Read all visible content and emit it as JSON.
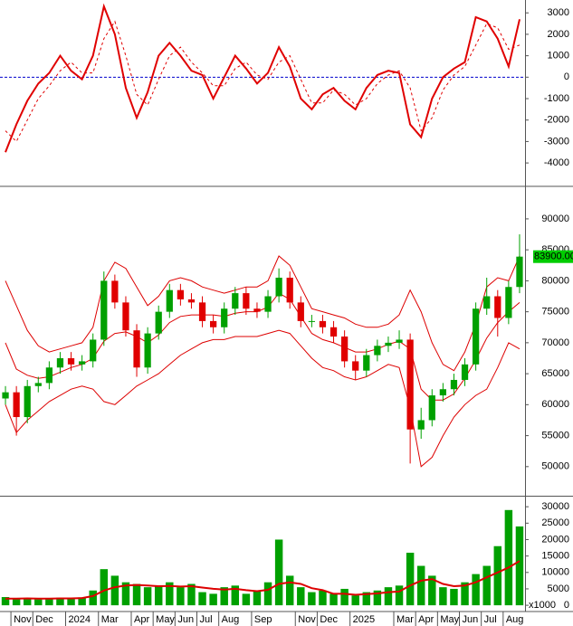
{
  "chart_data": [
    {
      "type": "line",
      "ylim": [
        -5050,
        3600
      ],
      "yticks": [
        3000,
        2000,
        1000,
        0,
        -1000,
        -2000,
        -3000,
        -4000
      ],
      "reference_line": {
        "value": 0,
        "color": "#0000cc"
      },
      "series": [
        {
          "color": "#e00000",
          "style": "solid",
          "values": [
            -3500,
            -2200,
            -1100,
            -300,
            200,
            1000,
            300,
            -100,
            1000,
            3300,
            2000,
            -500,
            -1900,
            -700,
            1000,
            1600,
            1000,
            300,
            100,
            -1000,
            0,
            1000,
            400,
            -300,
            200,
            1400,
            500,
            -1000,
            -1500,
            -800,
            -500,
            -1100,
            -1500,
            -500,
            100,
            300,
            200,
            -2200,
            -2800,
            -1000,
            0,
            400,
            700,
            2800,
            2600,
            1800,
            500,
            2700
          ]
        },
        {
          "color": "#e00000",
          "style": "dashed",
          "values": [
            -2500,
            -3000,
            -2000,
            -1000,
            -400,
            300,
            700,
            200,
            200,
            1800,
            2600,
            1000,
            -800,
            -1300,
            -100,
            1000,
            1400,
            700,
            200,
            -400,
            -400,
            400,
            700,
            100,
            -100,
            700,
            1000,
            -100,
            -1200,
            -1200,
            -600,
            -800,
            -1300,
            -1000,
            -300,
            100,
            300,
            -500,
            -2500,
            -1900,
            -600,
            100,
            500,
            1500,
            2500,
            2300,
            1300,
            1500
          ]
        }
      ]
    },
    {
      "type": "candlestick",
      "ylim": [
        45300,
        95100
      ],
      "yticks": [
        90000,
        85000,
        80000,
        75000,
        70000,
        65000,
        60000,
        55000,
        50000
      ],
      "up_color": "#00a000",
      "down_color": "#e00000",
      "open": [
        61000,
        62000,
        58000,
        63000,
        63500,
        66000,
        67500,
        66500,
        67000,
        70500,
        80000,
        76500,
        72000,
        66000,
        71500,
        75000,
        78500,
        77000,
        76500,
        73500,
        72500,
        75500,
        78000,
        75500,
        75000,
        77500,
        80500,
        76500,
        73500,
        73500,
        72500,
        71000,
        67000,
        65500,
        68000,
        69500,
        70000,
        70500,
        56000,
        57500,
        61500,
        62500,
        64000,
        66500,
        75500,
        77500,
        74000,
        79000
      ],
      "high": [
        63000,
        63000,
        64000,
        64500,
        67000,
        68500,
        68500,
        68000,
        71500,
        81500,
        81000,
        77500,
        73000,
        72500,
        76000,
        79500,
        79500,
        78000,
        77500,
        74500,
        76500,
        79000,
        79000,
        76500,
        78500,
        82000,
        81500,
        77500,
        74500,
        74500,
        73500,
        72000,
        68000,
        69000,
        70500,
        71000,
        72000,
        71500,
        59500,
        62500,
        63500,
        65000,
        67500,
        76500,
        80500,
        78500,
        80000,
        87500
      ],
      "low": [
        60000,
        55000,
        57000,
        62000,
        62500,
        65000,
        65500,
        65500,
        66000,
        69500,
        75500,
        71000,
        64500,
        65000,
        70500,
        74000,
        76000,
        75500,
        72500,
        71500,
        71500,
        74500,
        74500,
        74000,
        74000,
        76500,
        75500,
        72500,
        72500,
        71500,
        70000,
        66000,
        64000,
        64500,
        67000,
        68500,
        69000,
        50500,
        54500,
        56500,
        60500,
        61500,
        63000,
        65500,
        74500,
        71000,
        73000,
        78000
      ],
      "close": [
        62000,
        58000,
        63000,
        63500,
        66000,
        67500,
        66500,
        67000,
        70500,
        80000,
        76500,
        72000,
        66000,
        71500,
        75000,
        78500,
        77000,
        76500,
        73500,
        72500,
        75500,
        78000,
        75500,
        75000,
        77500,
        80500,
        76500,
        73500,
        73500,
        72500,
        71000,
        67000,
        65500,
        68000,
        69500,
        70000,
        70500,
        56000,
        57500,
        61500,
        62500,
        64000,
        66500,
        75500,
        77500,
        74000,
        79000,
        83900
      ],
      "series": [
        {
          "color": "#dd0000",
          "values": [
            80000,
            76000,
            72000,
            69500,
            68500,
            69000,
            69500,
            70000,
            72500,
            80000,
            83000,
            82000,
            79000,
            76000,
            77500,
            80000,
            80500,
            80000,
            79000,
            78500,
            78000,
            78500,
            79000,
            79000,
            80000,
            84000,
            82500,
            79000,
            75500,
            75000,
            74500,
            74000,
            73000,
            72500,
            72500,
            73000,
            74500,
            78500,
            75000,
            70000,
            66500,
            65500,
            68500,
            73000,
            79000,
            80500,
            80000,
            84000
          ]
        },
        {
          "color": "#dd0000",
          "values": [
            70000,
            65750,
            64750,
            64250,
            64500,
            65250,
            66000,
            66500,
            67500,
            70250,
            71500,
            71750,
            71000,
            70000,
            71250,
            73250,
            74250,
            74500,
            74500,
            74500,
            74250,
            74750,
            75000,
            75000,
            75750,
            78000,
            77000,
            74250,
            71500,
            70500,
            70000,
            69250,
            68500,
            68500,
            69000,
            69750,
            70250,
            69000,
            62500,
            60750,
            60750,
            61750,
            64250,
            67250,
            70750,
            73250,
            75000,
            76500
          ]
        },
        {
          "color": "#dd0000",
          "values": [
            60000,
            55500,
            57500,
            59000,
            60500,
            61500,
            62500,
            63000,
            62500,
            60500,
            60000,
            61500,
            63000,
            64000,
            65000,
            66500,
            68000,
            69000,
            70000,
            70500,
            70500,
            71000,
            71000,
            71000,
            71500,
            72000,
            71500,
            69500,
            67500,
            66000,
            65500,
            64500,
            64000,
            64500,
            65500,
            66500,
            66000,
            59500,
            50000,
            51500,
            55000,
            58000,
            60000,
            61500,
            62500,
            66000,
            70000,
            69000
          ]
        }
      ],
      "last_label": {
        "value": 83900,
        "label": "83900.00",
        "color": "#00cc00"
      }
    },
    {
      "type": "bar",
      "ylim": [
        -1900,
        32800
      ],
      "yticks": [
        30000,
        25000,
        20000,
        15000,
        10000,
        5000,
        0
      ],
      "unit_label": "x1000",
      "color": "#00a000",
      "categories": [
        null,
        "Nov",
        null,
        "Dec",
        null,
        null,
        "2024",
        null,
        null,
        "Mar",
        null,
        null,
        "Apr",
        null,
        "May",
        null,
        "Jun",
        null,
        "Jul",
        null,
        "Aug",
        null,
        null,
        "Sep",
        null,
        null,
        null,
        "Nov",
        null,
        "Dec",
        null,
        null,
        "2025",
        null,
        null,
        null,
        "Mar",
        null,
        "Apr",
        null,
        "May",
        null,
        "Jun",
        null,
        "Jul",
        null,
        "Aug",
        null
      ],
      "values": [
        2500,
        2000,
        2200,
        1800,
        2100,
        2300,
        1900,
        2400,
        4500,
        11000,
        9000,
        7000,
        6500,
        5500,
        6000,
        7000,
        5500,
        6500,
        4000,
        3500,
        5500,
        6000,
        3500,
        4500,
        7000,
        20000,
        9000,
        5500,
        4000,
        4500,
        3500,
        5000,
        3000,
        4000,
        4500,
        5500,
        6000,
        16000,
        12000,
        9000,
        5500,
        5000,
        7000,
        9500,
        12000,
        18000,
        29000,
        24000
      ],
      "series": [
        {
          "color": "#dd0000",
          "values": [
            2000,
            2000,
            2100,
            2000,
            2000,
            2100,
            2100,
            2200,
            2800,
            4500,
            5500,
            6000,
            6200,
            6000,
            5800,
            5900,
            5700,
            5800,
            5400,
            5000,
            4800,
            5000,
            4600,
            4300,
            4700,
            6500,
            7000,
            6500,
            5200,
            4600,
            3500,
            3500,
            3200,
            3400,
            3600,
            4000,
            4200,
            6000,
            7500,
            8000,
            6500,
            5800,
            6000,
            7000,
            8500,
            10000,
            11500,
            13500
          ]
        }
      ]
    }
  ]
}
